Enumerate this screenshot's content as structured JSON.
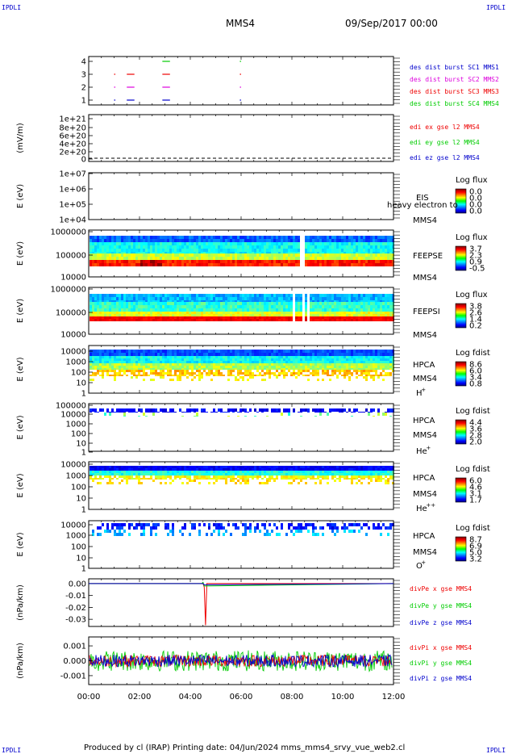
{
  "corner_labels": {
    "top_left": "IPDLI",
    "top_right": "IPDLI",
    "bottom_left": "IPDLI",
    "bottom_right": "IPDLI"
  },
  "header": {
    "spacecraft": "MMS4",
    "date": "09/Sep/2017 00:00"
  },
  "footer": {
    "text": "Produced by cl (IRAP)   Printing date: 04/Jun/2024   mms_mms4_srvy_vue_web2.cl"
  },
  "x_axis": {
    "ticks": [
      "00:00",
      "02:00",
      "04:00",
      "06:00",
      "08:00",
      "10:00",
      "12:00"
    ],
    "range_hours": [
      0,
      12
    ]
  },
  "colors": {
    "c_red": "#ee0000",
    "c_green": "#00cc00",
    "c_blue": "#0000cc",
    "c_magenta": "#dd00dd"
  },
  "chart_data": [
    {
      "type": "scatter",
      "panel": "burst-availability",
      "y_ticks": [
        "4",
        "3",
        "2",
        "1"
      ],
      "legend": [
        {
          "text": "des dist burst SC1 MMS1",
          "color": "#0000cc"
        },
        {
          "text": "des dist burst SC2 MMS2",
          "color": "#dd00dd"
        },
        {
          "text": "des dist burst SC3 MMS3",
          "color": "#ee0000"
        },
        {
          "text": "des dist burst SC4 MMS4",
          "color": "#00cc00"
        }
      ],
      "series": [
        {
          "name": "des dist burst SC4 MMS4",
          "level": 4,
          "color": "#00cc00",
          "segments": [
            [
              2.9,
              3.2
            ],
            [
              5.95,
              6.0
            ]
          ]
        },
        {
          "name": "des dist burst SC3 MMS3",
          "level": 3,
          "color": "#ee0000",
          "segments": [
            [
              1.0,
              1.05
            ],
            [
              1.5,
              1.8
            ],
            [
              2.9,
              3.2
            ],
            [
              5.95,
              6.0
            ]
          ]
        },
        {
          "name": "des dist burst SC2 MMS2",
          "level": 2,
          "color": "#dd00dd",
          "segments": [
            [
              1.0,
              1.05
            ],
            [
              1.5,
              1.8
            ],
            [
              2.9,
              3.2
            ],
            [
              5.95,
              6.0
            ]
          ]
        },
        {
          "name": "des dist burst SC1 MMS1",
          "level": 1,
          "color": "#0000cc",
          "segments": [
            [
              1.0,
              1.05
            ],
            [
              1.5,
              1.8
            ],
            [
              2.9,
              3.2
            ],
            [
              5.95,
              6.0
            ]
          ]
        }
      ]
    },
    {
      "type": "line",
      "panel": "edi-electric-field",
      "ylabel": "(mV/m)",
      "y_ticks": [
        "1e+21",
        "8e+20",
        "6e+20",
        "4e+20",
        "2e+20",
        "0"
      ],
      "legend": [
        {
          "text": "edi ex gse l2 MMS4",
          "color": "#ee0000"
        },
        {
          "text": "edi ey gse l2 MMS4",
          "color": "#00cc00"
        },
        {
          "text": "edi ez gse l2 MMS4",
          "color": "#0000cc"
        }
      ],
      "series": [
        {
          "name": "zero line",
          "values": [
            0,
            0
          ]
        }
      ]
    },
    {
      "type": "heatmap",
      "panel": "eis",
      "ylabel": "E (eV)",
      "y_ticks": [
        "1e+07",
        "1e+06",
        "1e+05",
        "1e+04"
      ],
      "instrument": "EIS",
      "overlay_text": "heavy electron to",
      "spacecraft": "MMS4",
      "colorbar": {
        "title": "Log flux",
        "ticks": [
          "0.0",
          "0.0",
          "0.0",
          "0.0"
        ]
      },
      "empty": true
    },
    {
      "type": "heatmap",
      "panel": "feepse",
      "ylabel": "E (eV)",
      "y_ticks": [
        "1000000",
        "100000",
        "10000"
      ],
      "instrument": "FEEPSE",
      "spacecraft": "MMS4",
      "colorbar": {
        "title": "Log flux",
        "ticks": [
          "3.7",
          "2.3",
          "0.9",
          "-0.5"
        ]
      },
      "gaps_hours": [
        [
          8.05,
          8.12
        ],
        [
          8.3,
          8.42
        ],
        [
          8.55,
          8.6
        ]
      ]
    },
    {
      "type": "heatmap",
      "panel": "feepsi",
      "ylabel": "E (eV)",
      "y_ticks": [
        "1000000",
        "100000",
        "10000"
      ],
      "instrument": "FEEPSI",
      "spacecraft": "MMS4",
      "colorbar": {
        "title": "Log flux",
        "ticks": [
          "3.8",
          "2.6",
          "1.4",
          "0.2"
        ]
      },
      "gaps_hours": [
        [
          7.95,
          8.05
        ],
        [
          8.35,
          8.45
        ],
        [
          8.55,
          8.62
        ]
      ]
    },
    {
      "type": "heatmap",
      "panel": "hpca-h",
      "ylabel": "E (eV)",
      "y_ticks": [
        "10000",
        "1000",
        "100",
        "10",
        "1"
      ],
      "instrument": "HPCA",
      "spacecraft": "MMS4",
      "species": "H",
      "species_charge": "+",
      "colorbar": {
        "title": "Log fdist",
        "ticks": [
          "8.6",
          "6.0",
          "3.4",
          "0.8"
        ]
      }
    },
    {
      "type": "heatmap",
      "panel": "hpca-he",
      "ylabel": "E (eV)",
      "y_ticks": [
        "100000",
        "10000",
        "1000",
        "100",
        "10",
        "1"
      ],
      "instrument": "HPCA",
      "spacecraft": "MMS4",
      "species": "He",
      "species_charge": "+",
      "colorbar": {
        "title": "Log fdist",
        "ticks": [
          "4.4",
          "3.6",
          "2.8",
          "2.0"
        ]
      }
    },
    {
      "type": "heatmap",
      "panel": "hpca-hepp",
      "ylabel": "E (eV)",
      "y_ticks": [
        "10000",
        "1000",
        "100",
        "10",
        "1"
      ],
      "instrument": "HPCA",
      "spacecraft": "MMS4",
      "species": "He",
      "species_charge": "++",
      "colorbar": {
        "title": "Log fdist",
        "ticks": [
          "6.0",
          "4.6",
          "3.1",
          "1.7"
        ]
      }
    },
    {
      "type": "heatmap",
      "panel": "hpca-o",
      "ylabel": "E (eV)",
      "y_ticks": [
        "10000",
        "1000",
        "100",
        "10",
        "1"
      ],
      "instrument": "HPCA",
      "spacecraft": "MMS4",
      "species": "O",
      "species_charge": "+",
      "colorbar": {
        "title": "Log fdist",
        "ticks": [
          "8.7",
          "6.9",
          "5.0",
          "3.2"
        ]
      }
    },
    {
      "type": "line",
      "panel": "divpe",
      "ylabel": "(nPa/km)",
      "y_ticks": [
        "0.00",
        "-0.01",
        "-0.02",
        "-0.03"
      ],
      "ylim": [
        -0.036,
        0.004
      ],
      "legend": [
        {
          "text": "divPe x gse MMS4",
          "color": "#ee0000"
        },
        {
          "text": "divPe y gse MMS4",
          "color": "#00cc00"
        },
        {
          "text": "divPe z gse MMS4",
          "color": "#0000cc"
        }
      ],
      "series": [
        {
          "name": "divPe x gse MMS4",
          "color": "#ee0000",
          "x": [
            0,
            4.5,
            4.55,
            4.6,
            4.65,
            12
          ],
          "values": [
            0,
            0,
            -0.003,
            -0.035,
            0,
            0
          ]
        },
        {
          "name": "divPe y gse MMS4",
          "color": "#00cc00",
          "x": [
            0,
            4.45,
            4.5,
            4.55,
            12
          ],
          "values": [
            0,
            0,
            0.001,
            -0.002,
            0
          ]
        },
        {
          "name": "divPe z gse MMS4",
          "color": "#0000cc",
          "x": [
            0,
            4.5,
            4.55,
            12
          ],
          "values": [
            0,
            0,
            -0.001,
            0
          ]
        }
      ]
    },
    {
      "type": "line",
      "panel": "divpi",
      "ylabel": "(nPa/km)",
      "y_ticks": [
        "0.001",
        "0.000",
        "-0.001"
      ],
      "ylim": [
        -0.0016,
        0.0016
      ],
      "legend": [
        {
          "text": "divPi x gse MMS4",
          "color": "#ee0000"
        },
        {
          "text": "divPi y gse MMS4",
          "color": "#00cc00"
        },
        {
          "text": "divPi z gse MMS4",
          "color": "#0000cc"
        }
      ],
      "noise_amplitude": {
        "x": 0.0004,
        "y": 0.0007,
        "z": 0.0004
      }
    }
  ]
}
